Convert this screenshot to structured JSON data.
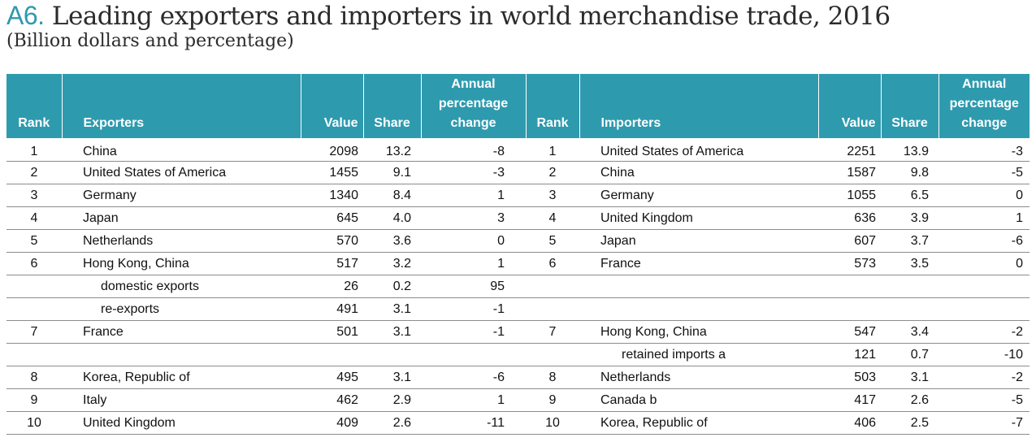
{
  "header": {
    "code": "A6.",
    "title": "Leading exporters and importers in world merchandise trade, 2016",
    "subtitle": "(Billion dollars and percentage)"
  },
  "columns": {
    "rank": "Rank",
    "exporters": "Exporters",
    "value": "Value",
    "share": "Share",
    "annual_line1": "Annual",
    "annual_line2": "percentage",
    "annual_line3": "change",
    "rank2": "Rank",
    "importers": "Importers",
    "value2": "Value",
    "share2": "Share"
  },
  "rows": [
    {
      "er": "1",
      "ex": "China",
      "ev": "2098",
      "es": "13.2",
      "ep": "-8",
      "ir": "1",
      "im": "United States of America",
      "iv": "2251",
      "is": "13.9",
      "ip": "-3"
    },
    {
      "er": "2",
      "ex": "United States of America",
      "ev": "1455",
      "es": "9.1",
      "ep": "-3",
      "ir": "2",
      "im": "China",
      "iv": "1587",
      "is": "9.8",
      "ip": "-5"
    },
    {
      "er": "3",
      "ex": "Germany",
      "ev": "1340",
      "es": "8.4",
      "ep": "1",
      "ir": "3",
      "im": "Germany",
      "iv": "1055",
      "is": "6.5",
      "ip": "0"
    },
    {
      "er": "4",
      "ex": "Japan",
      "ev": "645",
      "es": "4.0",
      "ep": "3",
      "ir": "4",
      "im": "United Kingdom",
      "iv": "636",
      "is": "3.9",
      "ip": "1"
    },
    {
      "er": "5",
      "ex": "Netherlands",
      "ev": "570",
      "es": "3.6",
      "ep": "0",
      "ir": "5",
      "im": "Japan",
      "iv": "607",
      "is": "3.7",
      "ip": "-6"
    },
    {
      "er": "6",
      "ex": "Hong Kong, China",
      "ev": "517",
      "es": "3.2",
      "ep": "1",
      "ir": "6",
      "im": "France",
      "iv": "573",
      "is": "3.5",
      "ip": "0"
    },
    {
      "er": "",
      "ex": "domestic exports",
      "ev": "26",
      "es": "0.2",
      "ep": "95",
      "ir": "",
      "im": "",
      "iv": "",
      "is": "",
      "ip": ""
    },
    {
      "er": "",
      "ex": "re-exports",
      "ev": "491",
      "es": "3.1",
      "ep": "-1",
      "ir": "",
      "im": "",
      "iv": "",
      "is": "",
      "ip": ""
    },
    {
      "er": "7",
      "ex": "France",
      "ev": "501",
      "es": "3.1",
      "ep": "-1",
      "ir": "7",
      "im": "Hong Kong, China",
      "iv": "547",
      "is": "3.4",
      "ip": "-2"
    },
    {
      "er": "",
      "ex": "",
      "ev": "",
      "es": "",
      "ep": "",
      "ir": "",
      "im": "retained imports a",
      "iv": "121",
      "is": "0.7",
      "ip": "-10"
    },
    {
      "er": "8",
      "ex": "Korea, Republic of",
      "ev": "495",
      "es": "3.1",
      "ep": "-6",
      "ir": "8",
      "im": "Netherlands",
      "iv": "503",
      "is": "3.1",
      "ip": "-2"
    },
    {
      "er": "9",
      "ex": "Italy",
      "ev": "462",
      "es": "2.9",
      "ep": "1",
      "ir": "9",
      "im": "Canada  b",
      "iv": "417",
      "is": "2.6",
      "ip": "-5"
    },
    {
      "er": "10",
      "ex": "United Kingdom",
      "ev": "409",
      "es": "2.6",
      "ep": "-11",
      "ir": "10",
      "im": "Korea, Republic of",
      "iv": "406",
      "is": "2.5",
      "ip": "-7"
    }
  ],
  "colors": {
    "accent": "#2e9aae",
    "header_text": "#ffffff",
    "rule": "#8c8c8c"
  }
}
